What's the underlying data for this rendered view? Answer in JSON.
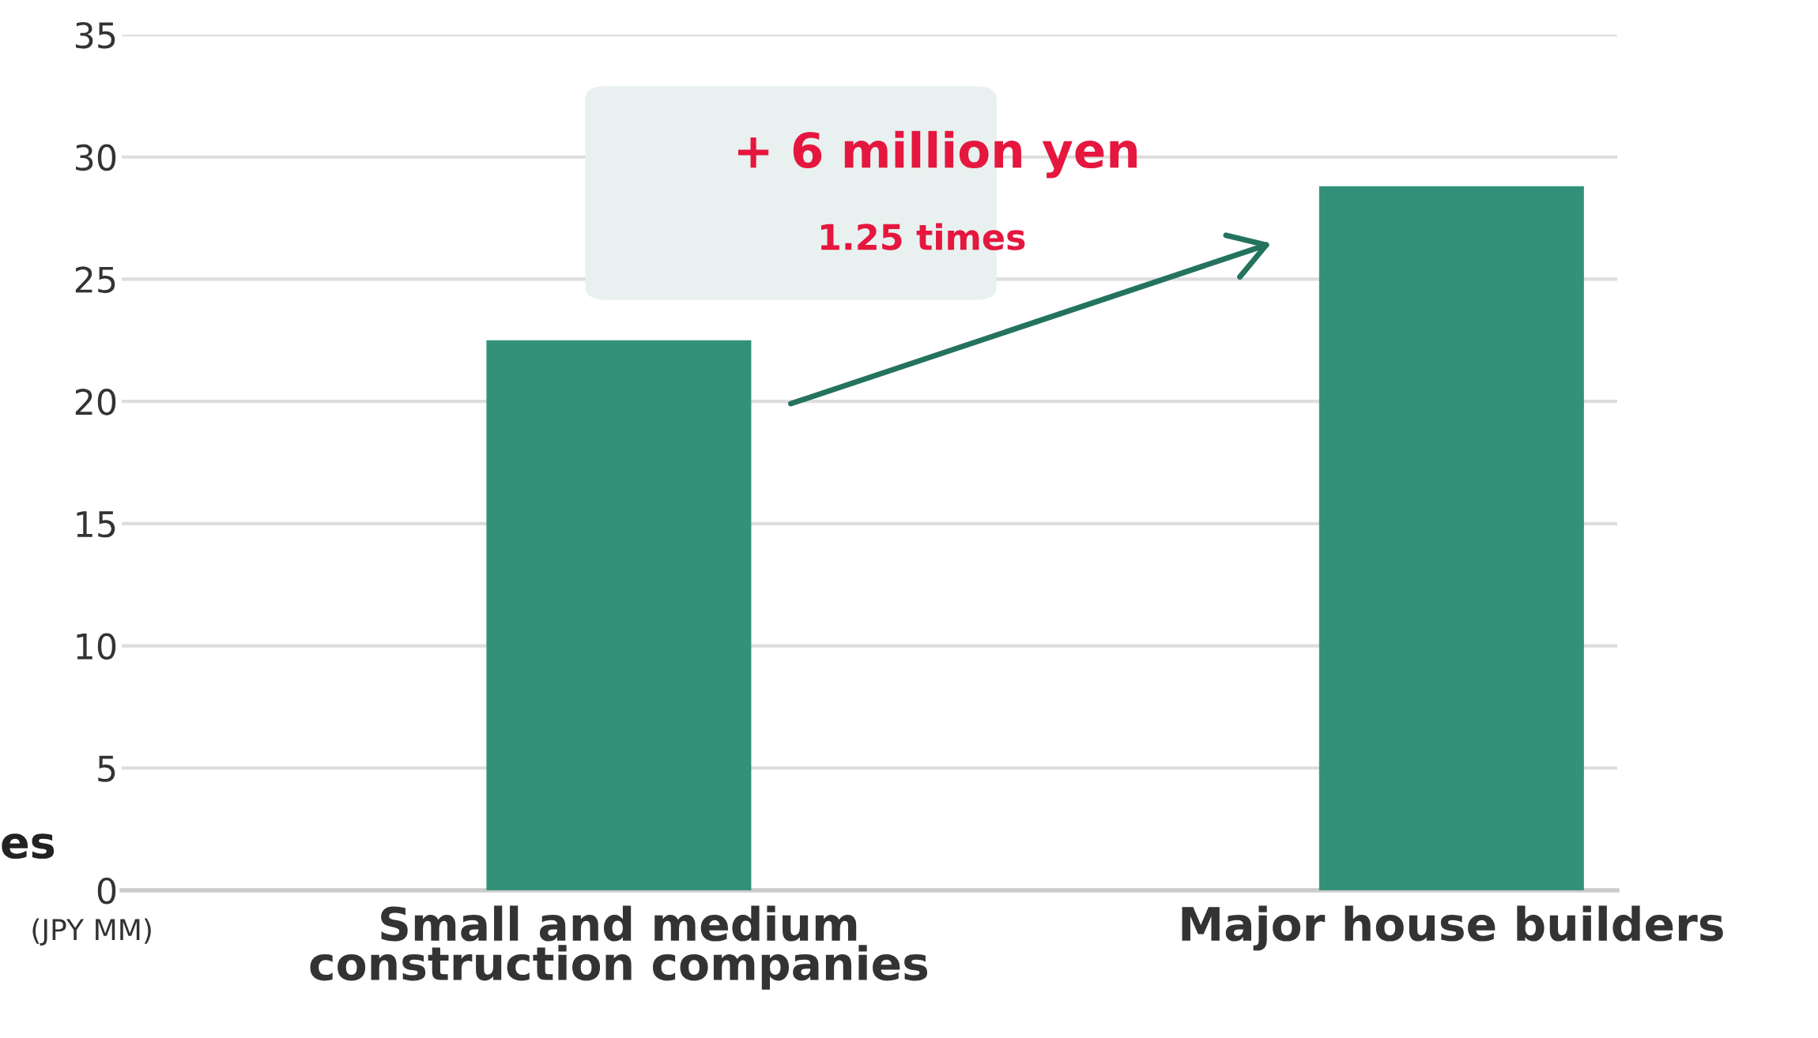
{
  "chart_data": {
    "type": "bar",
    "categories": [
      "Small and medium\nconstruction companies",
      "Major house builders"
    ],
    "values": [
      22.5,
      28.8
    ],
    "color": "#33917a",
    "ylabel": "(JPY MM)",
    "ylim": [
      0,
      35
    ],
    "yticks": [
      0,
      5,
      10,
      15,
      20,
      25,
      30,
      35
    ],
    "grid": "y",
    "annotations": [
      "+ 6 million yen",
      "1.25 times",
      "es"
    ]
  }
}
